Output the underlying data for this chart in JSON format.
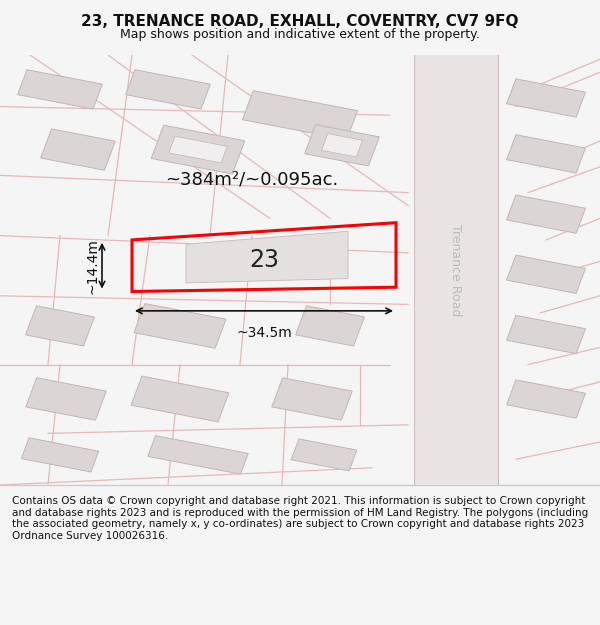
{
  "title": "23, TRENANCE ROAD, EXHALL, COVENTRY, CV7 9FQ",
  "subtitle": "Map shows position and indicative extent of the property.",
  "footer": "Contains OS data © Crown copyright and database right 2021. This information is subject to Crown copyright and database rights 2023 and is reproduced with the permission of HM Land Registry. The polygons (including the associated geometry, namely x, y co-ordinates) are subject to Crown copyright and database rights 2023 Ordnance Survey 100026316.",
  "bg_color": "#f5f5f5",
  "map_bg": "#ede9e9",
  "plot_edge": "#ff0000",
  "plot_linewidth": 2.2,
  "street_label": "Trenance Road",
  "area_label": "~384m²/~0.095ac.",
  "width_label": "~34.5m",
  "height_label": "~14.4m",
  "number_label": "23",
  "title_fontsize": 11,
  "subtitle_fontsize": 9,
  "footer_fontsize": 7.5,
  "footer_bg": "#ffffff",
  "separator_color": "#cccccc",
  "road_line_color": "#e8b8b8",
  "building_fill": "#dbd5d5",
  "building_edge": "#c5b5b5",
  "inner_fill": "#f0eeee"
}
